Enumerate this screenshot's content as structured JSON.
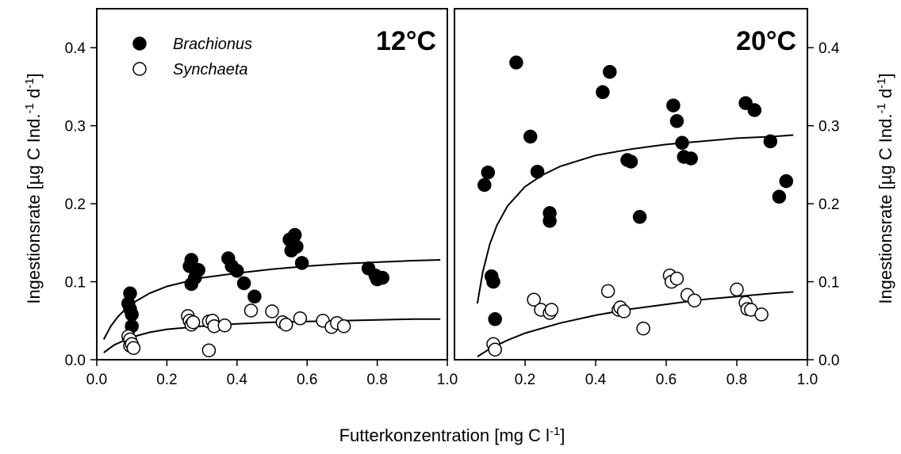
{
  "xlabel": {
    "main": "Futterkonzentration",
    "unit_pre": "[mg C l",
    "unit_exp": "-1",
    "unit_post": "]"
  },
  "ylabel": {
    "main": "Ingestionsrate",
    "unit1": "[µg C Ind.",
    "exp1": "-1",
    "mid": " d",
    "exp2": "-1",
    "unit_post": "]"
  },
  "chart_data": [
    {
      "type": "scatter",
      "title": "12°C",
      "xlim": [
        0.0,
        1.0
      ],
      "ylim": [
        0.0,
        0.45
      ],
      "xticks": [
        "0.0",
        "0.2",
        "0.4",
        "0.6",
        "0.8",
        "1.0"
      ],
      "yticks": [
        "0.0",
        "0.1",
        "0.2",
        "0.3",
        "0.4"
      ],
      "series": [
        {
          "name": "Brachionus",
          "marker": "filled",
          "points": [
            [
              0.09,
              0.072
            ],
            [
              0.095,
              0.085
            ],
            [
              0.095,
              0.065
            ],
            [
              0.1,
              0.058
            ],
            [
              0.1,
              0.043
            ],
            [
              0.265,
              0.12
            ],
            [
              0.27,
              0.097
            ],
            [
              0.27,
              0.128
            ],
            [
              0.28,
              0.105
            ],
            [
              0.29,
              0.115
            ],
            [
              0.375,
              0.13
            ],
            [
              0.385,
              0.12
            ],
            [
              0.4,
              0.114
            ],
            [
              0.42,
              0.098
            ],
            [
              0.45,
              0.081
            ],
            [
              0.55,
              0.154
            ],
            [
              0.555,
              0.14
            ],
            [
              0.565,
              0.16
            ],
            [
              0.57,
              0.145
            ],
            [
              0.585,
              0.124
            ],
            [
              0.775,
              0.117
            ],
            [
              0.795,
              0.108
            ],
            [
              0.8,
              0.103
            ],
            [
              0.815,
              0.105
            ]
          ],
          "fit": [
            [
              0.02,
              0.026
            ],
            [
              0.04,
              0.043
            ],
            [
              0.06,
              0.055
            ],
            [
              0.08,
              0.064
            ],
            [
              0.1,
              0.072
            ],
            [
              0.15,
              0.085
            ],
            [
              0.2,
              0.094
            ],
            [
              0.3,
              0.105
            ],
            [
              0.4,
              0.111
            ],
            [
              0.5,
              0.116
            ],
            [
              0.6,
              0.12
            ],
            [
              0.7,
              0.123
            ],
            [
              0.8,
              0.125
            ],
            [
              0.9,
              0.127
            ],
            [
              0.98,
              0.128
            ]
          ]
        },
        {
          "name": "Synchaeta",
          "marker": "open",
          "points": [
            [
              0.09,
              0.03
            ],
            [
              0.095,
              0.026
            ],
            [
              0.095,
              0.018
            ],
            [
              0.1,
              0.02
            ],
            [
              0.105,
              0.015
            ],
            [
              0.26,
              0.056
            ],
            [
              0.265,
              0.05
            ],
            [
              0.27,
              0.045
            ],
            [
              0.275,
              0.048
            ],
            [
              0.32,
              0.012
            ],
            [
              0.32,
              0.049
            ],
            [
              0.33,
              0.05
            ],
            [
              0.335,
              0.043
            ],
            [
              0.365,
              0.044
            ],
            [
              0.44,
              0.063
            ],
            [
              0.5,
              0.062
            ],
            [
              0.53,
              0.048
            ],
            [
              0.54,
              0.045
            ],
            [
              0.58,
              0.053
            ],
            [
              0.645,
              0.05
            ],
            [
              0.67,
              0.042
            ],
            [
              0.685,
              0.047
            ],
            [
              0.705,
              0.043
            ]
          ],
          "fit": [
            [
              0.02,
              0.009
            ],
            [
              0.05,
              0.019
            ],
            [
              0.1,
              0.029
            ],
            [
              0.15,
              0.035
            ],
            [
              0.2,
              0.039
            ],
            [
              0.3,
              0.043
            ],
            [
              0.4,
              0.046
            ],
            [
              0.5,
              0.048
            ],
            [
              0.6,
              0.049
            ],
            [
              0.7,
              0.05
            ],
            [
              0.8,
              0.051
            ],
            [
              0.9,
              0.052
            ],
            [
              0.98,
              0.052
            ]
          ]
        }
      ],
      "legend": {
        "position": "top-left"
      }
    },
    {
      "type": "scatter",
      "title": "20°C",
      "xlim": [
        0.0,
        1.0
      ],
      "ylim": [
        0.0,
        0.45
      ],
      "xticks": [
        "0.2",
        "0.4",
        "0.6",
        "0.8",
        "1.0"
      ],
      "yticks": [
        "0.0",
        "0.1",
        "0.2",
        "0.3",
        "0.4"
      ],
      "series": [
        {
          "name": "Brachionus",
          "marker": "filled",
          "points": [
            [
              0.085,
              0.224
            ],
            [
              0.095,
              0.24
            ],
            [
              0.105,
              0.107
            ],
            [
              0.11,
              0.1
            ],
            [
              0.115,
              0.052
            ],
            [
              0.175,
              0.381
            ],
            [
              0.215,
              0.286
            ],
            [
              0.235,
              0.241
            ],
            [
              0.27,
              0.188
            ],
            [
              0.27,
              0.178
            ],
            [
              0.42,
              0.343
            ],
            [
              0.44,
              0.369
            ],
            [
              0.49,
              0.256
            ],
            [
              0.5,
              0.254
            ],
            [
              0.525,
              0.183
            ],
            [
              0.62,
              0.326
            ],
            [
              0.63,
              0.306
            ],
            [
              0.645,
              0.278
            ],
            [
              0.65,
              0.26
            ],
            [
              0.67,
              0.258
            ],
            [
              0.825,
              0.329
            ],
            [
              0.85,
              0.32
            ],
            [
              0.895,
              0.28
            ],
            [
              0.92,
              0.209
            ],
            [
              0.94,
              0.229
            ]
          ],
          "fit": [
            [
              0.065,
              0.072
            ],
            [
              0.08,
              0.112
            ],
            [
              0.1,
              0.148
            ],
            [
              0.12,
              0.172
            ],
            [
              0.15,
              0.197
            ],
            [
              0.2,
              0.222
            ],
            [
              0.25,
              0.237
            ],
            [
              0.3,
              0.248
            ],
            [
              0.4,
              0.262
            ],
            [
              0.5,
              0.27
            ],
            [
              0.6,
              0.276
            ],
            [
              0.7,
              0.28
            ],
            [
              0.8,
              0.284
            ],
            [
              0.9,
              0.286
            ],
            [
              0.96,
              0.288
            ]
          ]
        },
        {
          "name": "Synchaeta",
          "marker": "open",
          "points": [
            [
              0.11,
              0.02
            ],
            [
              0.115,
              0.013
            ],
            [
              0.225,
              0.077
            ],
            [
              0.245,
              0.064
            ],
            [
              0.27,
              0.06
            ],
            [
              0.275,
              0.064
            ],
            [
              0.435,
              0.088
            ],
            [
              0.465,
              0.064
            ],
            [
              0.47,
              0.067
            ],
            [
              0.48,
              0.062
            ],
            [
              0.535,
              0.04
            ],
            [
              0.61,
              0.108
            ],
            [
              0.615,
              0.1
            ],
            [
              0.63,
              0.104
            ],
            [
              0.66,
              0.083
            ],
            [
              0.68,
              0.076
            ],
            [
              0.8,
              0.09
            ],
            [
              0.825,
              0.073
            ],
            [
              0.83,
              0.065
            ],
            [
              0.84,
              0.064
            ],
            [
              0.87,
              0.058
            ]
          ],
          "fit": [
            [
              0.065,
              0.004
            ],
            [
              0.1,
              0.014
            ],
            [
              0.15,
              0.025
            ],
            [
              0.2,
              0.034
            ],
            [
              0.3,
              0.047
            ],
            [
              0.4,
              0.057
            ],
            [
              0.5,
              0.065
            ],
            [
              0.6,
              0.071
            ],
            [
              0.7,
              0.077
            ],
            [
              0.8,
              0.081
            ],
            [
              0.9,
              0.085
            ],
            [
              0.96,
              0.087
            ]
          ]
        }
      ]
    }
  ]
}
